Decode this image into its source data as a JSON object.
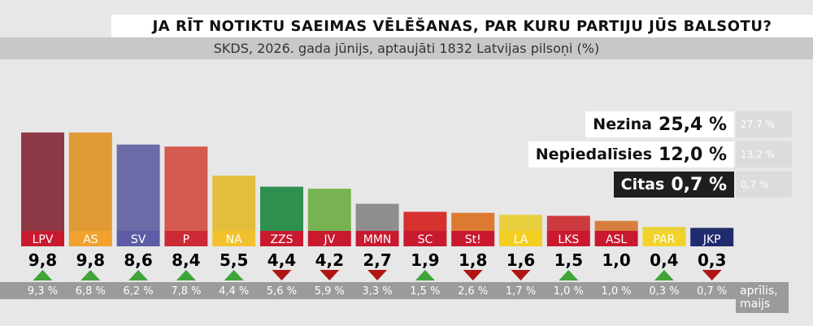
{
  "header": {
    "title": "JA RĪT NOTIKTU SAEIMAS VĒLĒŠANAS, PAR KURU PARTIJU JŪS BALSOTU?",
    "subtitle": "SKDS, 2026. gada jūnijs, aptaujāti 1832 Latvijas pilsoņi (%)"
  },
  "highlights": [
    {
      "label": "Nezina",
      "value": "25,4 %",
      "previous": "27,7 %",
      "style": "light"
    },
    {
      "label": "Nepiedalīsies",
      "value": "12,0 %",
      "previous": "13,2 %",
      "style": "light"
    },
    {
      "label": "Citas",
      "value": "0,7 %",
      "previous": "0,7 %",
      "style": "dark"
    }
  ],
  "period_label": [
    "aprīlis,",
    "maijs"
  ],
  "colors": {
    "up_arrow": "#3fa53a",
    "down_arrow": "#b01515",
    "previous_bg": "#9b9b9b",
    "label_bg": "#c8192f",
    "highlight_prev_bg": "#dcdcdc",
    "dark_box": "#1e1e1e"
  },
  "chart_data": {
    "type": "bar",
    "categories": [
      "LPV",
      "AS",
      "SV",
      "P",
      "NA",
      "ZZS",
      "JV",
      "MMN",
      "SC",
      "St!",
      "LA",
      "LKS",
      "ASL",
      "PAR",
      "JKP"
    ],
    "values": [
      9.8,
      9.8,
      8.6,
      8.4,
      5.5,
      4.4,
      4.2,
      2.7,
      1.9,
      1.8,
      1.6,
      1.5,
      1.0,
      0.4,
      0.3
    ],
    "value_labels": [
      "9,8",
      "9,8",
      "8,6",
      "8,4",
      "5,5",
      "4,4",
      "4,2",
      "2,7",
      "1,9",
      "1,8",
      "1,6",
      "1,5",
      "1,0",
      "0,4",
      "0,3"
    ],
    "previous_values": [
      9.3,
      6.8,
      6.2,
      7.8,
      4.4,
      5.6,
      5.9,
      3.3,
      1.5,
      2.6,
      1.7,
      1.0,
      1.0,
      0.3,
      0.7
    ],
    "previous_labels": [
      "9,3 %",
      "6,8 %",
      "6,2 %",
      "7,8 %",
      "4,4 %",
      "5,6 %",
      "5,9 %",
      "3,3 %",
      "1,5 %",
      "2,6 %",
      "1,7 %",
      "1,0 %",
      "1,0 %",
      "0,3 %",
      "0,7 %"
    ],
    "trend": [
      "up",
      "up",
      "up",
      "up",
      "up",
      "down",
      "down",
      "down",
      "up",
      "down",
      "down",
      "up",
      "none",
      "up",
      "down"
    ],
    "bar_colors": [
      "#8e3a46",
      "#e09a35",
      "#6d6aa8",
      "#d55a4f",
      "#e2be3c",
      "#2f8f4f",
      "#78b352",
      "#8e8e8e",
      "#d6312e",
      "#dd7a32",
      "#e7cf3e",
      "#cd3b3f",
      "#d67d3f",
      "#e7d13b",
      "#1d2f63"
    ],
    "label_colors": [
      "#c8192f",
      "#f0a12e",
      "#5d5ca6",
      "#cc2a35",
      "#f2c22e",
      "#c8192f",
      "#c8192f",
      "#c8192f",
      "#c8192f",
      "#c8192f",
      "#f3cf21",
      "#c8192f",
      "#c8192f",
      "#f3d32a",
      "#1f2b6e"
    ],
    "ylim": [
      0,
      10
    ]
  }
}
